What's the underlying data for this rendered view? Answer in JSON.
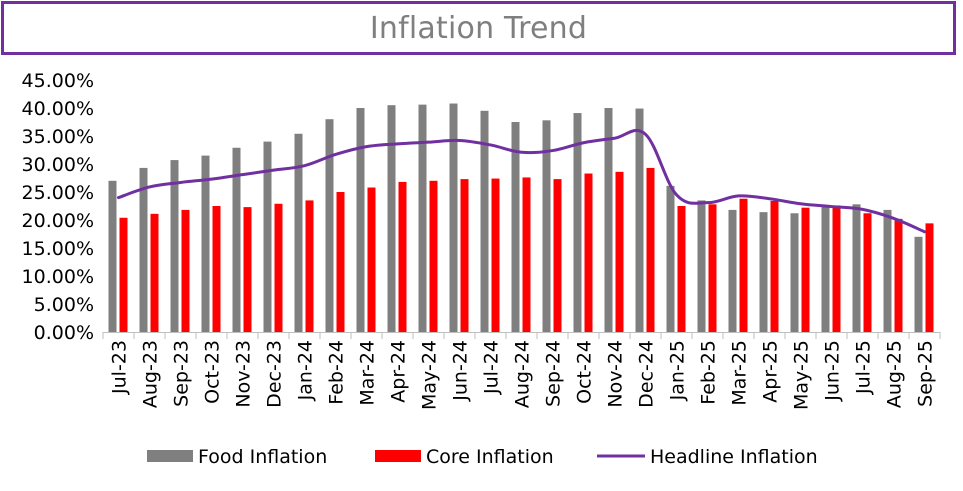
{
  "chart_data": {
    "type": "bar",
    "title": "Inflation Trend",
    "categories": [
      "Jul-23",
      "Aug-23",
      "Sep-23",
      "Oct-23",
      "Nov-23",
      "Dec-23",
      "Jan-24",
      "Feb-24",
      "Mar-24",
      "Apr-24",
      "May-24",
      "Jun-24",
      "Jul-24",
      "Aug-24",
      "Sep-24",
      "Oct-24",
      "Nov-24",
      "Dec-24",
      "Jan-25",
      "Feb-25",
      "Mar-25",
      "Apr-25",
      "May-25",
      "Jun-25",
      "Jul-25",
      "Aug-25",
      "Sep-25"
    ],
    "yticks": [
      "0.00%",
      "5.00%",
      "10.00%",
      "15.00%",
      "20.00%",
      "25.00%",
      "30.00%",
      "35.00%",
      "40.00%",
      "45.00%"
    ],
    "ylim": [
      0,
      45
    ],
    "legend_position": "bottom",
    "grid": false,
    "series": [
      {
        "name": "Food Inflation",
        "kind": "bar",
        "color": "#7f7f7f",
        "values": [
          27.0,
          29.3,
          30.7,
          31.5,
          32.9,
          34.0,
          35.4,
          38.0,
          40.0,
          40.5,
          40.6,
          40.8,
          39.5,
          37.5,
          37.8,
          39.1,
          40.0,
          39.9,
          26.1,
          23.5,
          21.8,
          21.4,
          21.2,
          22.4,
          22.8,
          21.8,
          17.0
        ]
      },
      {
        "name": "Core Inflation",
        "kind": "bar",
        "color": "#ff0000",
        "values": [
          20.4,
          21.1,
          21.8,
          22.5,
          22.3,
          22.9,
          23.5,
          25.0,
          25.8,
          26.8,
          27.0,
          27.3,
          27.4,
          27.6,
          27.3,
          28.3,
          28.6,
          29.3,
          22.5,
          22.8,
          23.8,
          23.4,
          22.2,
          22.6,
          21.2,
          20.2,
          19.4
        ]
      },
      {
        "name": "Headline Inflation",
        "kind": "line",
        "color": "#7030a0",
        "values": [
          24.0,
          25.9,
          26.7,
          27.3,
          28.1,
          28.9,
          29.7,
          31.7,
          33.1,
          33.6,
          33.9,
          34.2,
          33.4,
          32.1,
          32.4,
          33.8,
          34.6,
          35.3,
          24.5,
          23.1,
          24.3,
          23.8,
          22.9,
          22.4,
          21.9,
          20.3,
          17.9
        ]
      }
    ]
  }
}
